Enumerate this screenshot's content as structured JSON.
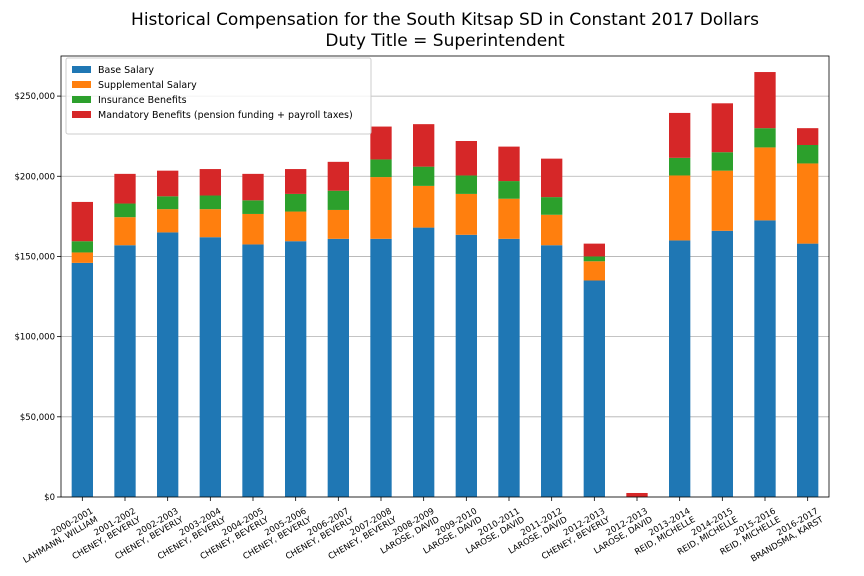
{
  "chart_data": {
    "type": "bar",
    "stacked": true,
    "title": "Historical Compensation for the South Kitsap SD in Constant 2017 Dollars",
    "subtitle": "Duty Title = Superintendent",
    "xlabel": "",
    "ylabel": "",
    "ylim": [
      0,
      275000
    ],
    "yticks": [
      0,
      50000,
      100000,
      150000,
      200000,
      250000
    ],
    "ytick_labels": [
      "$0",
      "$50,000",
      "$100,000",
      "$150,000",
      "$200,000",
      "$250,000"
    ],
    "grid": "horizontal",
    "legend_position": "top-left",
    "categories": [
      [
        "2000-2001",
        "LAHMANN, WILLIAM"
      ],
      [
        "2001-2002",
        "CHENEY, BEVERLY"
      ],
      [
        "2002-2003",
        "CHENEY, BEVERLY"
      ],
      [
        "2003-2004",
        "CHENEY, BEVERLY"
      ],
      [
        "2004-2005",
        "CHENEY, BEVERLY"
      ],
      [
        "2005-2006",
        "CHENEY, BEVERLY"
      ],
      [
        "2006-2007",
        "CHENEY, BEVERLY"
      ],
      [
        "2007-2008",
        "CHENEY, BEVERLY"
      ],
      [
        "2008-2009",
        "LAROSE, DAVID"
      ],
      [
        "2009-2010",
        "LAROSE, DAVID"
      ],
      [
        "2010-2011",
        "LAROSE, DAVID"
      ],
      [
        "2011-2012",
        "LAROSE, DAVID"
      ],
      [
        "2012-2013",
        "CHENEY, BEVERLY"
      ],
      [
        "2012-2013",
        "LAROSE, DAVID"
      ],
      [
        "2013-2014",
        "REID, MICHELLE"
      ],
      [
        "2014-2015",
        "REID, MICHELLE"
      ],
      [
        "2015-2016",
        "REID, MICHELLE"
      ],
      [
        "2016-2017",
        "BRANDSMA, KARST"
      ]
    ],
    "series": [
      {
        "name": "Base Salary",
        "color": "#1f77b4",
        "values": [
          146000,
          157000,
          165000,
          162000,
          157500,
          159500,
          161000,
          161000,
          168000,
          163500,
          161000,
          157000,
          135000,
          0,
          160000,
          166000,
          172500,
          158000
        ]
      },
      {
        "name": "Supplemental Salary",
        "color": "#ff7f0e",
        "values": [
          6500,
          17500,
          14500,
          17500,
          19000,
          18500,
          18000,
          38500,
          26000,
          25500,
          25000,
          19000,
          12000,
          0,
          40500,
          37500,
          45500,
          50000
        ]
      },
      {
        "name": "Insurance Benefits",
        "color": "#2ca02c",
        "values": [
          7000,
          8500,
          8000,
          8500,
          8500,
          11000,
          12000,
          11000,
          12000,
          11500,
          11000,
          11000,
          3000,
          0,
          11000,
          11500,
          12000,
          11500
        ]
      },
      {
        "name": "Mandatory Benefits (pension funding + payroll taxes)",
        "color": "#d62728",
        "values": [
          24500,
          18500,
          16000,
          16500,
          16500,
          15500,
          18000,
          20500,
          26500,
          21500,
          21500,
          24000,
          8000,
          2500,
          28000,
          30500,
          35000,
          10500
        ]
      }
    ]
  }
}
